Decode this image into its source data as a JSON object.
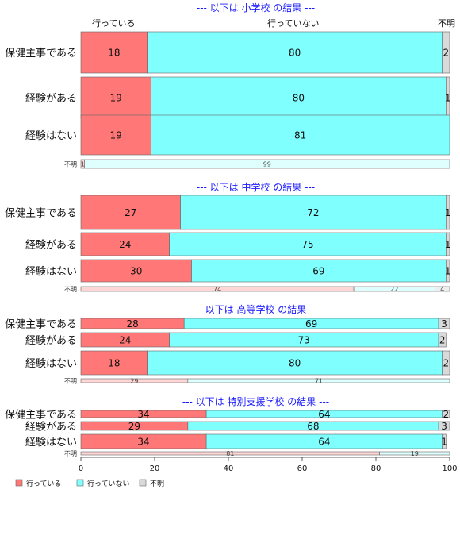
{
  "chart_data": {
    "type": "bar",
    "orientation": "horizontal-stacked-100",
    "column_headers": [
      "行っている",
      "行っていない",
      "不明"
    ],
    "legend": {
      "placement": "bottom-left",
      "items": [
        {
          "label": "行っている",
          "color": "#ff7777"
        },
        {
          "label": "行っていない",
          "color": "#80ffff"
        },
        {
          "label": "不明",
          "color": "#d9d9d9"
        }
      ]
    },
    "x_axis": {
      "range": [
        0,
        100
      ],
      "ticks": [
        0,
        20,
        40,
        60,
        80,
        100
      ]
    },
    "sections": [
      {
        "title": "--- 以下は 小学校 の結果 ---",
        "rows": [
          {
            "label": "保健主事である",
            "values": [
              18,
              80,
              2
            ],
            "labels": [
              "18",
              "80",
              "2"
            ]
          },
          {
            "label": "経験がある",
            "values": [
              19,
              80,
              1
            ],
            "labels": [
              "19",
              "80",
              "1"
            ]
          },
          {
            "label": "経験はない",
            "values": [
              19,
              81,
              0.4
            ],
            "labels": [
              "19",
              "81",
              ""
            ]
          },
          {
            "label": "不明",
            "small": true,
            "values": [
              1,
              99,
              0
            ],
            "labels": [
              "1",
              "99",
              ""
            ]
          }
        ]
      },
      {
        "title": "--- 以下は 中学校 の結果 ---",
        "rows": [
          {
            "label": "保健主事である",
            "values": [
              27,
              72,
              1
            ],
            "labels": [
              "27",
              "72",
              "1"
            ]
          },
          {
            "label": "経験がある",
            "values": [
              24,
              75,
              1
            ],
            "labels": [
              "24",
              "75",
              "1"
            ]
          },
          {
            "label": "経験はない",
            "values": [
              30,
              69,
              1
            ],
            "labels": [
              "30",
              "69",
              "1"
            ]
          },
          {
            "label": "不明",
            "small": true,
            "values": [
              74,
              22,
              4
            ],
            "labels": [
              "74",
              "22",
              "4"
            ]
          }
        ]
      },
      {
        "title": "--- 以下は 高等学校 の結果 ---",
        "rows": [
          {
            "label": "保健主事である",
            "values": [
              28,
              69,
              3
            ],
            "labels": [
              "28",
              "69",
              "3"
            ]
          },
          {
            "label": "経験がある",
            "values": [
              24,
              73,
              2
            ],
            "labels": [
              "24",
              "73",
              "2"
            ]
          },
          {
            "label": "経験はない",
            "values": [
              18,
              80,
              2
            ],
            "labels": [
              "18",
              "80",
              "2"
            ]
          },
          {
            "label": "不明",
            "small": true,
            "values": [
              29,
              71,
              0
            ],
            "labels": [
              "29",
              "71",
              ""
            ]
          }
        ]
      },
      {
        "title": "--- 以下は 特別支援学校 の結果 ---",
        "rows": [
          {
            "label": "保健主事である",
            "values": [
              34,
              64,
              2
            ],
            "labels": [
              "34",
              "64",
              "2"
            ]
          },
          {
            "label": "経験がある",
            "values": [
              29,
              68,
              3
            ],
            "labels": [
              "29",
              "68",
              "3"
            ]
          },
          {
            "label": "経験はない",
            "values": [
              34,
              64,
              1
            ],
            "labels": [
              "34",
              "64",
              "1"
            ]
          },
          {
            "label": "不明",
            "small": true,
            "values": [
              81,
              19,
              0
            ],
            "labels": [
              "81",
              "19",
              ""
            ]
          }
        ]
      }
    ]
  }
}
